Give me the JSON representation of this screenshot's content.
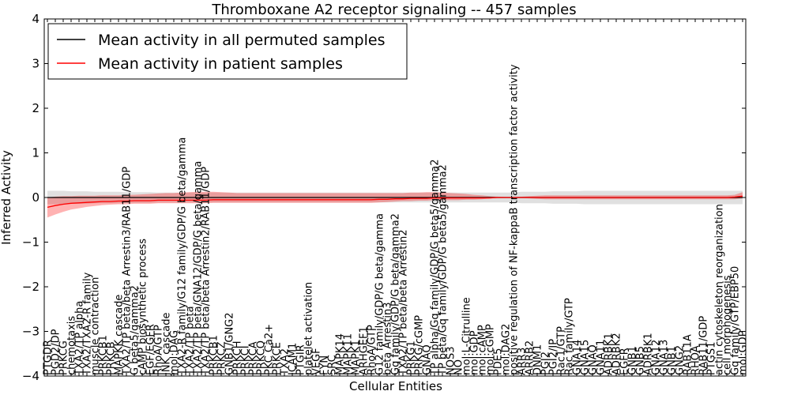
{
  "chart_data": {
    "type": "line",
    "title": "Thromboxane A2 receptor signaling -- 457 samples",
    "xlabel": "Cellular Entities",
    "ylabel": "Inferred Activity",
    "ylim": [
      -4,
      4
    ],
    "yticks": [
      "−4",
      "−3",
      "−2",
      "−1",
      "0",
      "1",
      "2",
      "3",
      "4"
    ],
    "legend_position": "top-left",
    "categories": [
      "PTGDR",
      "PGD2/DP",
      "PRKCG",
      "chemotaxis",
      "TXA2/TP alpha",
      "TXA2/TXA2-R family",
      "muscle contraction",
      "PRKCB1",
      "PRKCB",
      "MAPKK cascade",
      "TXA2/TP beta/beta Arrestin3/RAB11/GDP",
      "G beta5/gamma2",
      "cAMP biosynthetic process",
      "EGF/EGFR",
      "RhoA/GTP",
      "JNK cascade",
      "mol:DAG",
      "TXA2-R family/G12 family/GDP/G beta/gamma",
      "TXA2/TP beta",
      "TXA2/TP beta/GNA12/GDP/G beta/gamma",
      "TXA2/TP beta/beta Arrestin2/RAB11/GDP",
      "PRKCB1",
      "PRKCZ",
      "GNB1/GNG2",
      "PRKCH",
      "PRKCI",
      "PRKCA",
      "PRKCQ",
      "PKC Ca2+",
      "PRKCE",
      "TXA2",
      "ICAM1",
      "PTGIR",
      "platelet activation",
      "VEGF",
      "FYN",
      "SRC",
      "MAPK14",
      "MAPK11",
      "MAPK1",
      "ARHGEF1",
      "RhoA/GTP",
      "G12 family/GDP/G beta/gamma",
      "beta Arrestin3",
      "Gq family/GDP/G beta/gamma2",
      "TXA2/TP beta/beta Arrestin2",
      "PRKG1",
      "PRKG/cGMP",
      "GNAQ",
      "TP alpha/Gq family/GDP/G beta5/gamma2",
      "TP beta/Gq family/GDP/G beta5/gamma2",
      "NOS3",
      "NO",
      "mol:L-Citrulline",
      "mol:GDP",
      "mol:cAMP",
      "mol:cGMP",
      "PDE5",
      "mol:DAG2",
      "positive regulation of NF-kappaB transcription factor activity",
      "ARR3",
      "ARRB2",
      "DNM1",
      "PGI2",
      "PGI2/IP",
      "Rac1/GTP",
      "Rac family/GTP",
      "GNA14",
      "GNA15",
      "GNAQ",
      "GNA11",
      "ADRBK1",
      "ADRBK2",
      "EGFR",
      "GNB1",
      "GNB5",
      "ADRBK1",
      "GNA12",
      "GNA13",
      "GNB1",
      "GNG2",
      "RAB11A",
      "RHOA",
      "RAB11/GDP",
      "PTGS1",
      "actin cytoskeleton reorganization",
      "cell morphogenesis",
      "Gq family/GTP/EBP50",
      "mol:GDP"
    ],
    "series": [
      {
        "name": "Mean activity in all permuted samples",
        "color": "#000000",
        "values": [
          0.0,
          0.0,
          0.0,
          0.0,
          0.0,
          0.0,
          0.0,
          0.0,
          0.0,
          0.0,
          0.0,
          0.0,
          0.0,
          0.0,
          0.0,
          0.0,
          0.0,
          0.0,
          0.0,
          0.0,
          0.0,
          0.0,
          0.0,
          0.0,
          0.0,
          0.0,
          0.0,
          0.0,
          0.0,
          0.0,
          0.0,
          0.0,
          0.0,
          0.0,
          0.0,
          0.0,
          0.0,
          0.0,
          0.0,
          0.0,
          0.0,
          0.0,
          0.0,
          0.0,
          0.0,
          0.0,
          0.0,
          0.0,
          0.0,
          0.0,
          0.0,
          0.0,
          0.0,
          0.0,
          0.0,
          0.0,
          0.0,
          0.0,
          0.0,
          0.0,
          0.0,
          0.0,
          0.0,
          0.0,
          0.0,
          0.0,
          0.0,
          0.0,
          0.0,
          0.0,
          0.0,
          0.0,
          0.0,
          0.0,
          0.0,
          0.0,
          0.0,
          0.0,
          0.0,
          0.0,
          0.0,
          0.0,
          0.0,
          0.0,
          0.0,
          0.0,
          0.0,
          0.0,
          0.0
        ],
        "band_lower": [
          -0.15,
          -0.15,
          -0.15,
          -0.14,
          -0.14,
          -0.14,
          -0.13,
          -0.13,
          -0.13,
          -0.13,
          -0.12,
          -0.12,
          -0.12,
          -0.12,
          -0.11,
          -0.11,
          -0.11,
          -0.11,
          -0.11,
          -0.11,
          -0.11,
          -0.11,
          -0.11,
          -0.11,
          -0.11,
          -0.11,
          -0.11,
          -0.11,
          -0.11,
          -0.11,
          -0.11,
          -0.11,
          -0.11,
          -0.11,
          -0.11,
          -0.11,
          -0.11,
          -0.11,
          -0.11,
          -0.11,
          -0.11,
          -0.11,
          -0.11,
          -0.11,
          -0.11,
          -0.11,
          -0.11,
          -0.11,
          -0.11,
          -0.11,
          -0.11,
          -0.11,
          -0.11,
          -0.11,
          -0.11,
          -0.11,
          -0.11,
          -0.11,
          -0.11,
          -0.11,
          -0.13,
          -0.13,
          -0.13,
          -0.13,
          -0.14,
          -0.14,
          -0.14,
          -0.14,
          -0.15,
          -0.15,
          -0.15,
          -0.15,
          -0.15,
          -0.15,
          -0.15,
          -0.15,
          -0.15,
          -0.15,
          -0.15,
          -0.15,
          -0.15,
          -0.15,
          -0.15,
          -0.15,
          -0.15,
          -0.15,
          -0.15,
          -0.15,
          -0.15
        ],
        "band_upper": [
          0.15,
          0.15,
          0.15,
          0.14,
          0.14,
          0.14,
          0.13,
          0.13,
          0.13,
          0.13,
          0.12,
          0.12,
          0.12,
          0.12,
          0.11,
          0.11,
          0.11,
          0.11,
          0.11,
          0.11,
          0.11,
          0.11,
          0.11,
          0.11,
          0.11,
          0.11,
          0.11,
          0.11,
          0.11,
          0.11,
          0.11,
          0.11,
          0.11,
          0.11,
          0.11,
          0.11,
          0.11,
          0.11,
          0.11,
          0.11,
          0.11,
          0.11,
          0.11,
          0.11,
          0.11,
          0.11,
          0.11,
          0.11,
          0.11,
          0.11,
          0.11,
          0.11,
          0.11,
          0.11,
          0.11,
          0.11,
          0.11,
          0.11,
          0.11,
          0.11,
          0.13,
          0.13,
          0.13,
          0.13,
          0.14,
          0.14,
          0.14,
          0.14,
          0.15,
          0.15,
          0.15,
          0.15,
          0.15,
          0.15,
          0.15,
          0.15,
          0.15,
          0.15,
          0.15,
          0.15,
          0.15,
          0.15,
          0.15,
          0.15,
          0.15,
          0.15,
          0.15,
          0.15,
          0.15
        ]
      },
      {
        "name": "Mean activity in patient samples",
        "color": "#ff0000",
        "values": [
          -0.22,
          -0.18,
          -0.15,
          -0.13,
          -0.12,
          -0.11,
          -0.1,
          -0.09,
          -0.09,
          -0.08,
          -0.08,
          -0.07,
          -0.07,
          -0.07,
          -0.06,
          -0.06,
          -0.06,
          -0.06,
          -0.06,
          -0.06,
          -0.06,
          -0.05,
          -0.05,
          -0.05,
          -0.05,
          -0.05,
          -0.05,
          -0.05,
          -0.05,
          -0.05,
          -0.05,
          -0.05,
          -0.05,
          -0.05,
          -0.05,
          -0.05,
          -0.05,
          -0.05,
          -0.05,
          -0.05,
          -0.05,
          -0.05,
          -0.04,
          -0.04,
          -0.03,
          -0.03,
          -0.02,
          -0.02,
          -0.02,
          -0.01,
          -0.01,
          -0.01,
          -0.01,
          -0.01,
          -0.01,
          -0.01,
          -0.01,
          0.0,
          0.0,
          0.0,
          0.0,
          0.0,
          0.0,
          0.0,
          0.0,
          0.0,
          0.0,
          0.0,
          0.0,
          0.0,
          0.0,
          0.0,
          0.0,
          0.0,
          0.0,
          0.0,
          0.0,
          0.0,
          0.0,
          0.0,
          0.0,
          0.0,
          0.0,
          0.0,
          0.0,
          0.0,
          0.0,
          0.01,
          0.03
        ],
        "band_lower": [
          -0.45,
          -0.38,
          -0.32,
          -0.27,
          -0.24,
          -0.21,
          -0.19,
          -0.17,
          -0.16,
          -0.15,
          -0.15,
          -0.14,
          -0.14,
          -0.14,
          -0.13,
          -0.13,
          -0.13,
          -0.13,
          -0.13,
          -0.13,
          -0.13,
          -0.12,
          -0.12,
          -0.12,
          -0.12,
          -0.12,
          -0.12,
          -0.12,
          -0.12,
          -0.12,
          -0.12,
          -0.12,
          -0.12,
          -0.12,
          -0.12,
          -0.12,
          -0.12,
          -0.12,
          -0.12,
          -0.12,
          -0.12,
          -0.12,
          -0.11,
          -0.1,
          -0.09,
          -0.08,
          -0.08,
          -0.07,
          -0.07,
          -0.06,
          -0.06,
          -0.06,
          -0.06,
          -0.05,
          -0.05,
          -0.04,
          -0.02,
          -0.01,
          -0.01,
          -0.01,
          -0.01,
          -0.02,
          -0.03,
          -0.04,
          -0.04,
          -0.04,
          -0.04,
          -0.04,
          -0.04,
          -0.04,
          -0.04,
          -0.04,
          -0.04,
          -0.04,
          -0.04,
          -0.04,
          -0.04,
          -0.04,
          -0.04,
          -0.04,
          -0.04,
          -0.04,
          -0.04,
          -0.04,
          -0.04,
          -0.04,
          -0.04,
          -0.04,
          -0.02
        ],
        "band_upper": [
          0.0,
          0.02,
          0.03,
          0.03,
          0.04,
          0.04,
          0.04,
          0.05,
          0.05,
          0.05,
          0.06,
          0.06,
          0.07,
          0.08,
          0.09,
          0.1,
          0.1,
          0.11,
          0.12,
          0.13,
          0.13,
          0.13,
          0.12,
          0.11,
          0.1,
          0.1,
          0.1,
          0.1,
          0.1,
          0.1,
          0.1,
          0.1,
          0.1,
          0.1,
          0.1,
          0.1,
          0.1,
          0.1,
          0.1,
          0.1,
          0.1,
          0.1,
          0.1,
          0.1,
          0.1,
          0.1,
          0.11,
          0.11,
          0.12,
          0.12,
          0.11,
          0.1,
          0.09,
          0.08,
          0.06,
          0.05,
          0.03,
          0.02,
          0.01,
          0.01,
          0.02,
          0.03,
          0.04,
          0.05,
          0.05,
          0.05,
          0.05,
          0.05,
          0.05,
          0.05,
          0.05,
          0.05,
          0.05,
          0.05,
          0.05,
          0.05,
          0.05,
          0.05,
          0.05,
          0.05,
          0.05,
          0.05,
          0.05,
          0.05,
          0.05,
          0.05,
          0.05,
          0.06,
          0.12
        ]
      }
    ]
  }
}
